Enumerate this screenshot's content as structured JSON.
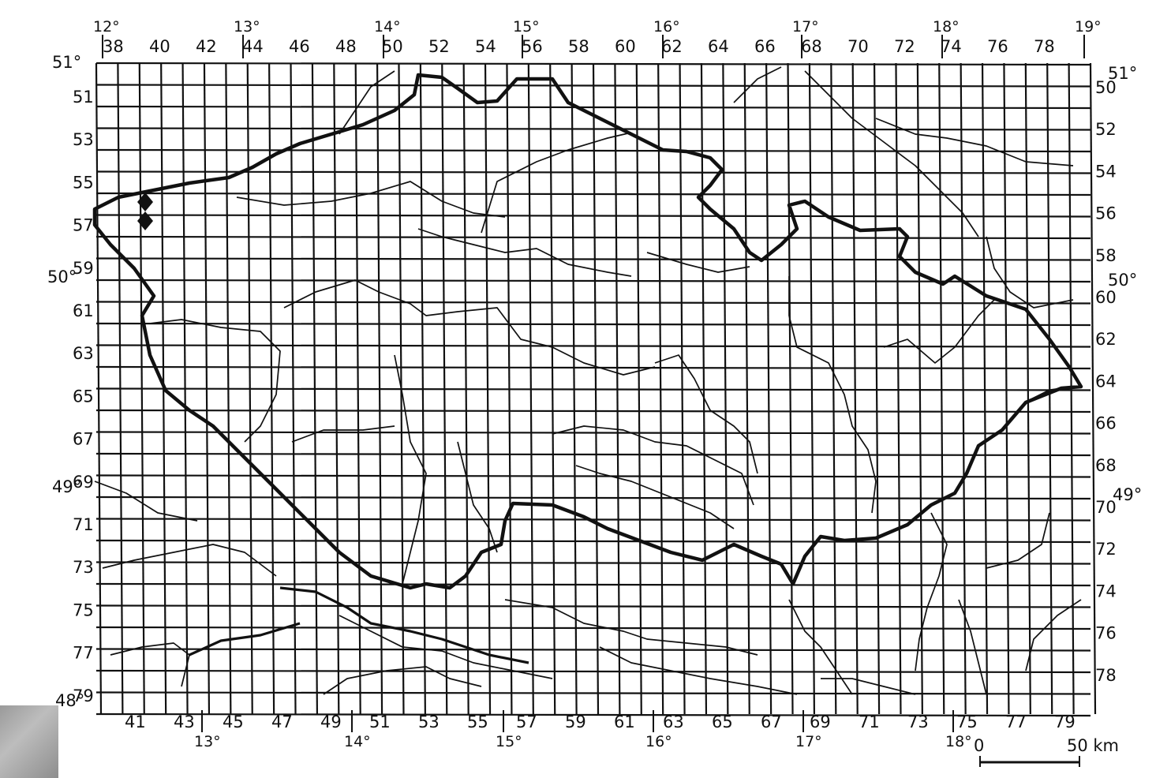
{
  "map": {
    "grid_columns_top": [
      "38",
      "40",
      "42",
      "44",
      "46",
      "48",
      "50",
      "52",
      "54",
      "56",
      "58",
      "60",
      "62",
      "64",
      "66",
      "68",
      "70",
      "72",
      "74",
      "76",
      "78"
    ],
    "grid_columns_bottom": [
      "41",
      "43",
      "45",
      "47",
      "49",
      "51",
      "53",
      "55",
      "57",
      "59",
      "61",
      "63",
      "65",
      "67",
      "69",
      "71",
      "73",
      "75",
      "77",
      "79"
    ],
    "grid_rows_left": [
      "51",
      "53",
      "55",
      "57",
      "59",
      "61",
      "63",
      "65",
      "67",
      "69",
      "71",
      "73",
      "75",
      "77",
      "79"
    ],
    "grid_rows_right": [
      "50",
      "52",
      "54",
      "56",
      "58",
      "60",
      "62",
      "64",
      "66",
      "68",
      "70",
      "72",
      "74",
      "76",
      "78"
    ],
    "longitudes_top": [
      "12°",
      "13°",
      "14°",
      "15°",
      "16°",
      "17°",
      "18°",
      "19°"
    ],
    "longitudes_bottom": [
      "13°",
      "14°",
      "15°",
      "16°",
      "17°",
      "18°"
    ],
    "latitudes_left": [
      "51°",
      "50°",
      "49°",
      "48°"
    ],
    "latitudes_right": [
      "51°",
      "50°",
      "49°"
    ],
    "scale": {
      "start": "0",
      "end": "50 km"
    },
    "colors": {
      "ink": "#111111",
      "paper": "#ffffff"
    },
    "record_markers": 2
  }
}
